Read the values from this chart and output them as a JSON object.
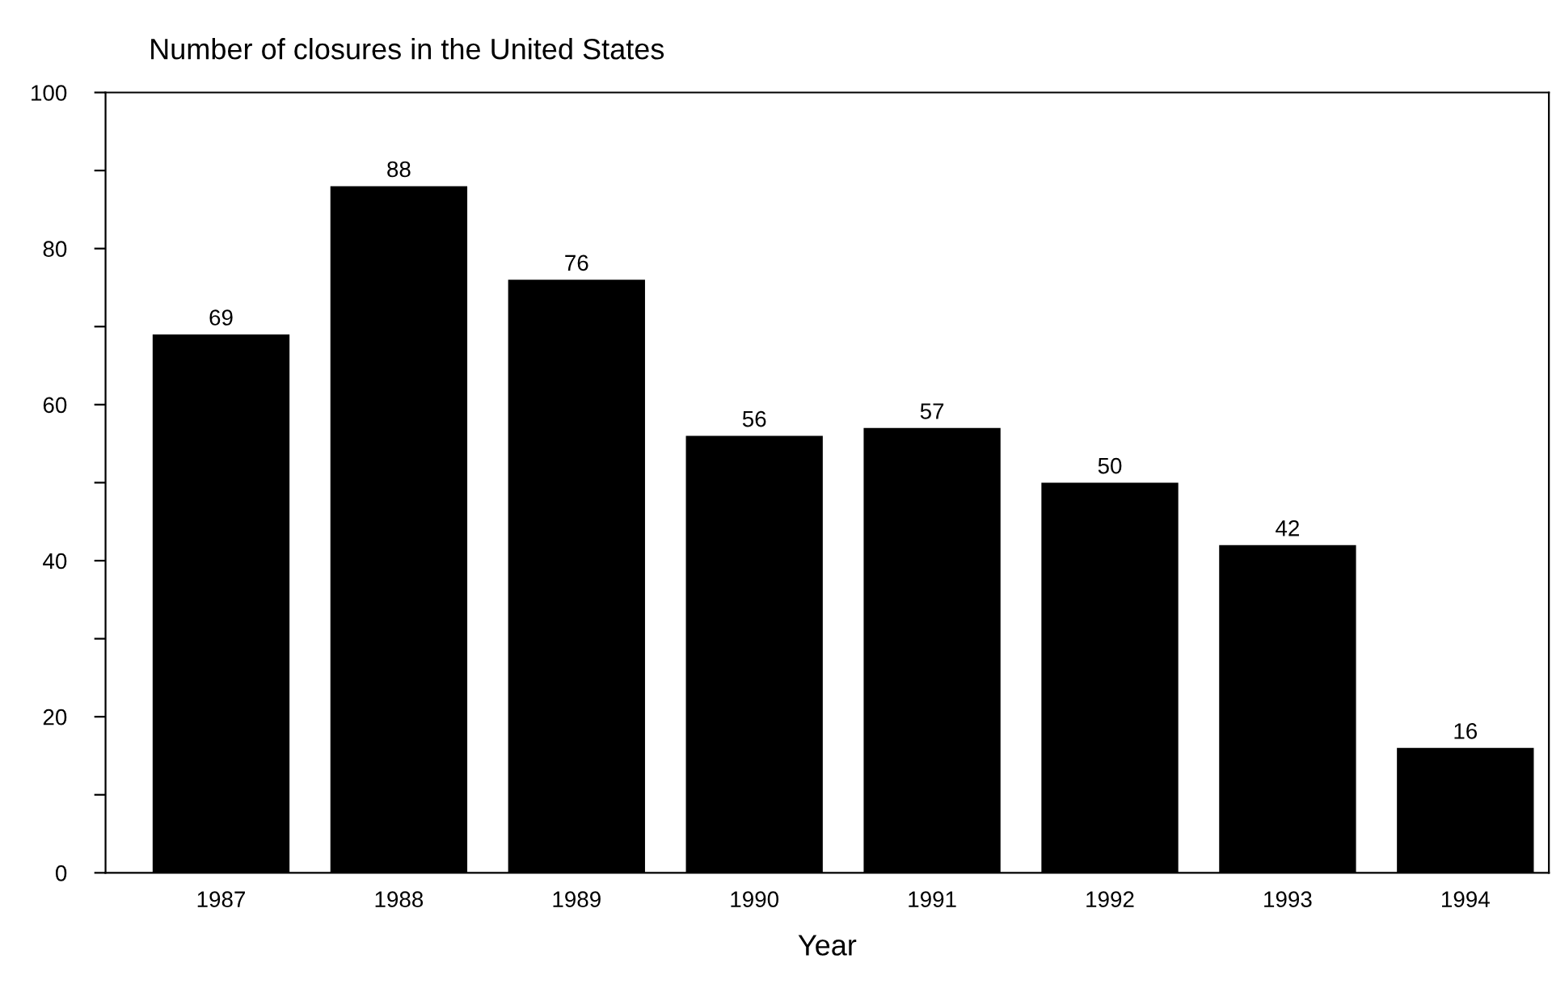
{
  "chart_data": {
    "type": "bar",
    "ylabel": "Number of closures in the United States",
    "xlabel": "Year",
    "categories": [
      "1987",
      "1988",
      "1989",
      "1990",
      "1991",
      "1992",
      "1993",
      "1994"
    ],
    "values": [
      69,
      88,
      76,
      56,
      57,
      50,
      42,
      16
    ],
    "color": "#000000",
    "ylim": [
      0,
      100
    ],
    "yticks": [
      0,
      {
        "value": 10,
        "label": null
      },
      20,
      {
        "value": 30,
        "label": null
      },
      40,
      {
        "value": 50,
        "label": null
      },
      60,
      {
        "value": 70,
        "label": null
      },
      80,
      {
        "value": 90,
        "label": null
      },
      100
    ],
    "data_labels": true,
    "grid": false,
    "legend": false
  }
}
